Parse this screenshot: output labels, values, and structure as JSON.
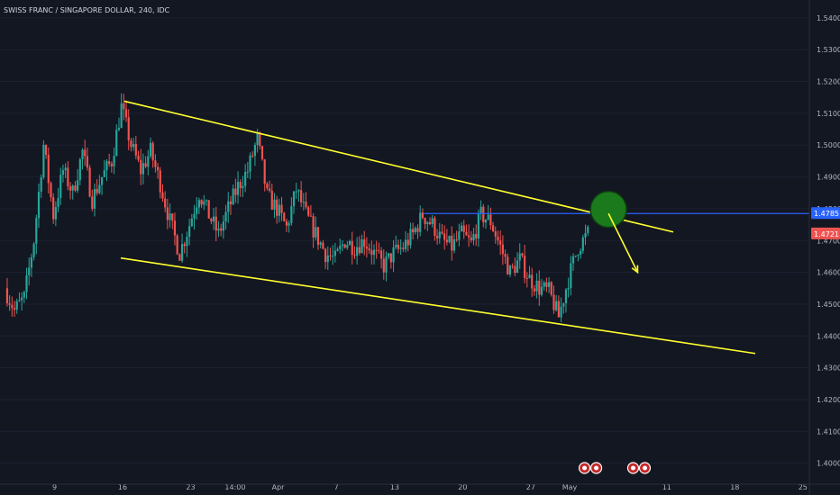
{
  "symbol_title": "SWISS FRANC / SINGAPORE DOLLAR, 240, IDC",
  "colors": {
    "background": "#131722",
    "up": "#26a69a",
    "down": "#ef5350",
    "channel": "#ffff2e",
    "resistance": "#2962ff",
    "target_circle": "#1b7a1b",
    "arrow": "#ffff2e",
    "price_tag_current": "#ef5350",
    "price_tag_line": "#2962ff"
  },
  "axis_labels": {
    "y_ticks": [
      "1.5400",
      "1.5300",
      "1.5200",
      "1.5100",
      "1.5000",
      "1.4900",
      "1.4800",
      "1.4700",
      "1.4600",
      "1.4500",
      "1.4400",
      "1.4300",
      "1.4200",
      "1.4100",
      "1.4000"
    ],
    "x_ticks": [
      "9",
      "16",
      "23",
      "14:00",
      "Apr",
      "7",
      "13",
      "20",
      "27",
      "May",
      "11",
      "18",
      "25"
    ]
  },
  "price_tags": {
    "resistance_value": "1.4785",
    "current_value": "1.4721"
  },
  "chart_data": {
    "type": "candlestick",
    "title": "SWISS FRANC / SINGAPORE DOLLAR, 240, IDC",
    "ylim": [
      1.3985,
      1.5425
    ],
    "y_ticks": [
      1.54,
      1.53,
      1.52,
      1.51,
      1.5,
      1.49,
      1.48,
      1.47,
      1.46,
      1.45,
      1.44,
      1.43,
      1.42,
      1.41,
      1.4
    ],
    "x_ticks": [
      {
        "label": "9",
        "date": "2020-03-09"
      },
      {
        "label": "16",
        "date": "2020-03-16"
      },
      {
        "label": "23",
        "date": "2020-03-23"
      },
      {
        "label": "14:00",
        "date": "2020-03-27T14:00"
      },
      {
        "label": "Apr",
        "date": "2020-04-01"
      },
      {
        "label": "7",
        "date": "2020-04-07"
      },
      {
        "label": "13",
        "date": "2020-04-13"
      },
      {
        "label": "20",
        "date": "2020-04-20"
      },
      {
        "label": "27",
        "date": "2020-04-27"
      },
      {
        "label": "May",
        "date": "2020-05-01"
      },
      {
        "label": "11",
        "date": "2020-05-11"
      },
      {
        "label": "18",
        "date": "2020-05-18"
      },
      {
        "label": "25",
        "date": "2020-05-25"
      }
    ],
    "price_path": [
      [
        "2020-03-04",
        1.455
      ],
      [
        "2020-03-05",
        1.448
      ],
      [
        "2020-03-06",
        1.452
      ],
      [
        "2020-03-07",
        1.47
      ],
      [
        "2020-03-08",
        1.5
      ],
      [
        "2020-03-09",
        1.478
      ],
      [
        "2020-03-10",
        1.492
      ],
      [
        "2020-03-11",
        1.485
      ],
      [
        "2020-03-12",
        1.498
      ],
      [
        "2020-03-13",
        1.483
      ],
      [
        "2020-03-14",
        1.49
      ],
      [
        "2020-03-15",
        1.495
      ],
      [
        "2020-03-16",
        1.512
      ],
      [
        "2020-03-17",
        1.5
      ],
      [
        "2020-03-18",
        1.492
      ],
      [
        "2020-03-19",
        1.498
      ],
      [
        "2020-03-20",
        1.488
      ],
      [
        "2020-03-21",
        1.476
      ],
      [
        "2020-03-22",
        1.466
      ],
      [
        "2020-03-23",
        1.475
      ],
      [
        "2020-03-24",
        1.485
      ],
      [
        "2020-03-25",
        1.478
      ],
      [
        "2020-03-26",
        1.472
      ],
      [
        "2020-03-27",
        1.48
      ],
      [
        "2020-03-28",
        1.487
      ],
      [
        "2020-03-29",
        1.492
      ],
      [
        "2020-03-30",
        1.502
      ],
      [
        "2020-03-31",
        1.484
      ],
      [
        "2020-04-01",
        1.48
      ],
      [
        "2020-04-02",
        1.474
      ],
      [
        "2020-04-03",
        1.486
      ],
      [
        "2020-04-04",
        1.478
      ],
      [
        "2020-04-05",
        1.472
      ],
      [
        "2020-04-06",
        1.466
      ],
      [
        "2020-04-07",
        1.464
      ],
      [
        "2020-04-08",
        1.47
      ],
      [
        "2020-04-09",
        1.468
      ],
      [
        "2020-04-10",
        1.47
      ],
      [
        "2020-04-11",
        1.466
      ],
      [
        "2020-04-12",
        1.462
      ],
      [
        "2020-04-13",
        1.466
      ],
      [
        "2020-04-14",
        1.468
      ],
      [
        "2020-04-15",
        1.472
      ],
      [
        "2020-04-16",
        1.478
      ],
      [
        "2020-04-17",
        1.475
      ],
      [
        "2020-04-18",
        1.47
      ],
      [
        "2020-04-19",
        1.468
      ],
      [
        "2020-04-20",
        1.472
      ],
      [
        "2020-04-21",
        1.469
      ],
      [
        "2020-04-22",
        1.478
      ],
      [
        "2020-04-23",
        1.476
      ],
      [
        "2020-04-24",
        1.468
      ],
      [
        "2020-04-25",
        1.46
      ],
      [
        "2020-04-26",
        1.464
      ],
      [
        "2020-04-27",
        1.458
      ],
      [
        "2020-04-28",
        1.455
      ],
      [
        "2020-04-29",
        1.454
      ],
      [
        "2020-04-30",
        1.446
      ],
      [
        "2020-05-01",
        1.458
      ],
      [
        "2020-05-02",
        1.468
      ],
      [
        "2020-05-03",
        1.4721
      ]
    ],
    "lower_channel": [
      [
        "2020-03-16",
        1.4645
      ],
      [
        "2020-05-24",
        1.4345
      ]
    ],
    "upper_channel": [
      [
        "2020-03-16",
        1.5138
      ],
      [
        "2020-05-08",
        1.4727
      ]
    ],
    "resistance_line": {
      "from": "2020-04-16",
      "value": 1.4785
    },
    "target_circle": {
      "date": "2020-05-05",
      "value": 1.4798
    },
    "projection_arrow": [
      [
        "2020-05-05",
        1.4785
      ],
      [
        "2020-05-08",
        1.46
      ]
    ],
    "event_badges": [
      {
        "date": "2020-05-03",
        "count": 2
      },
      {
        "date": "2020-05-08",
        "count": 2
      }
    ]
  }
}
